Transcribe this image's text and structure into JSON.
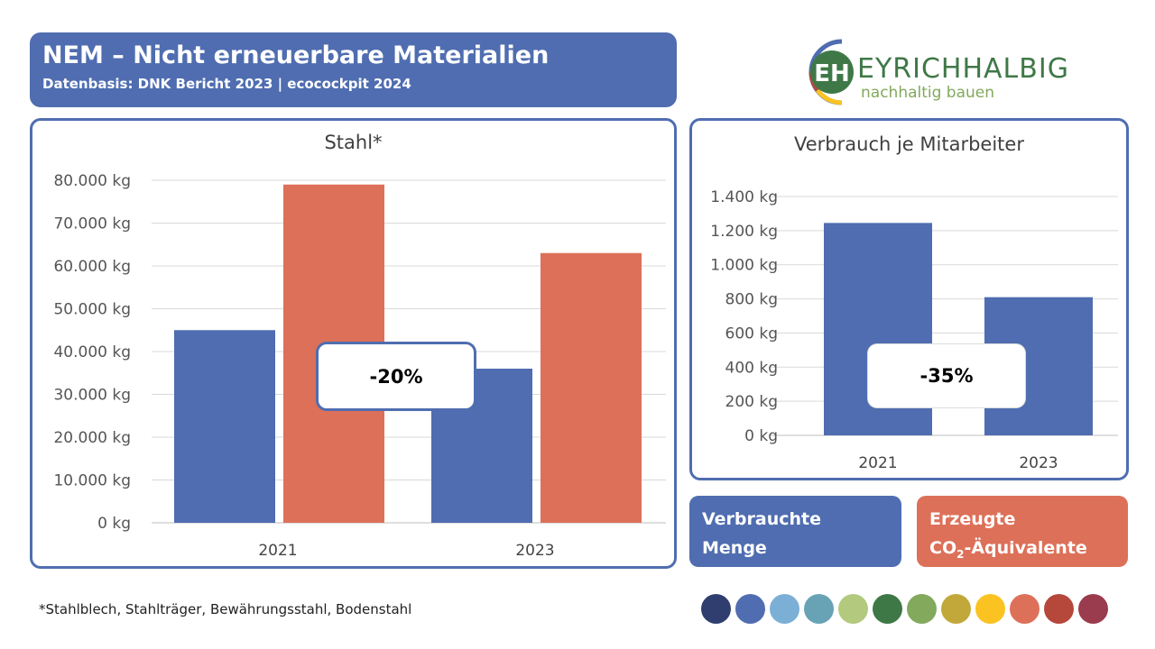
{
  "header": {
    "title": "NEM – Nicht erneuerbare Materialien",
    "subtitle": "Datenbasis: DNK Bericht 2023 | ecocockpit 2024"
  },
  "logo": {
    "brand": "EYRICHHALBIG",
    "tagline": "nachhaltig bauen",
    "mark": "EH"
  },
  "chart_data": [
    {
      "type": "bar",
      "title": "Stahl*",
      "categories": [
        "2021",
        "2023"
      ],
      "ylim": [
        0,
        80000
      ],
      "yticks": [
        "0 kg",
        "10.000 kg",
        "20.000 kg",
        "30.000 kg",
        "40.000 kg",
        "50.000 kg",
        "60.000 kg",
        "70.000 kg",
        "80.000 kg"
      ],
      "series": [
        {
          "name": "Verbrauchte Menge",
          "color": "#4f6db0",
          "values": [
            45000,
            36000
          ]
        },
        {
          "name": "Erzeugte CO₂-Äquivalente",
          "color": "#dd7059",
          "values": [
            79000,
            63000
          ]
        }
      ],
      "annotation": "-20%"
    },
    {
      "type": "bar",
      "title": "Verbrauch je Mitarbeiter",
      "categories": [
        "2021",
        "2023"
      ],
      "ylim": [
        0,
        1400
      ],
      "yticks": [
        "0 kg",
        "200 kg",
        "400 kg",
        "600 kg",
        "800 kg",
        "1.000 kg",
        "1.200 kg",
        "1.400 kg"
      ],
      "series": [
        {
          "name": "Verbrauchte Menge",
          "color": "#4f6db0",
          "values": [
            1245,
            810
          ]
        }
      ],
      "annotation": "-35%"
    }
  ],
  "legend": {
    "consumed_line1": "Verbrauchte",
    "consumed_line2": "Menge",
    "co2_line1": "Erzeugte",
    "co2_line2_pre": "CO",
    "co2_sub": "2",
    "co2_line2_post": "-Äquivalente"
  },
  "footnote": "*Stahlblech, Stahlträger, Bewährungsstahl, Bodenstahl",
  "palette": [
    "#2f3e6f",
    "#4f6db0",
    "#7bafd6",
    "#68a3b5",
    "#b3c97e",
    "#3f7847",
    "#82a95c",
    "#c2a83a",
    "#fbc321",
    "#dd7059",
    "#b5473b",
    "#9a3b4e"
  ]
}
